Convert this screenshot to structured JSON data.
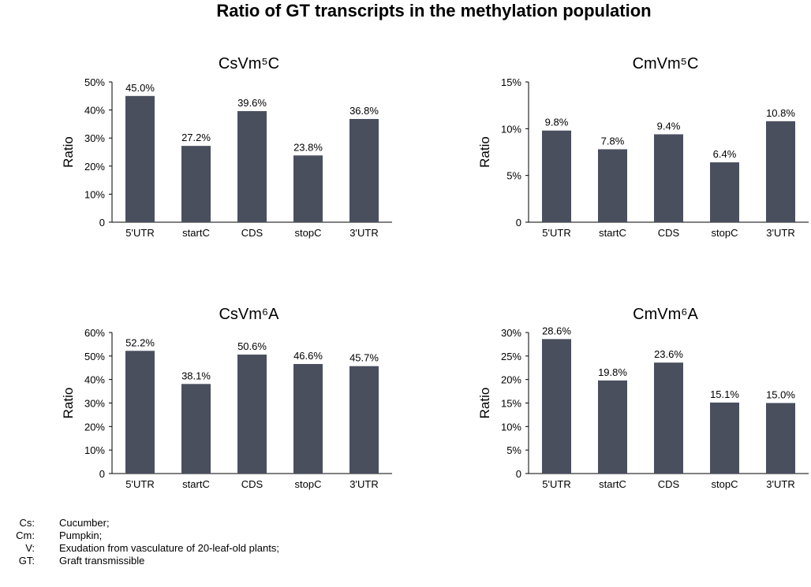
{
  "title": "Ratio of GT transcripts in the methylation population",
  "colors": {
    "bar": "#4a4f5e",
    "axis": "#000000"
  },
  "chart_data": [
    {
      "type": "bar",
      "title": "CsVm⁵C",
      "ylabel": "Ratio",
      "categories": [
        "5'UTR",
        "startC",
        "CDS",
        "stopC",
        "3'UTR"
      ],
      "values": [
        45.0,
        27.2,
        39.6,
        23.8,
        36.8
      ],
      "data_labels": [
        "45.0%",
        "27.2%",
        "39.6%",
        "23.8%",
        "36.8%"
      ],
      "ylim": [
        0,
        50
      ],
      "yticks": [
        0,
        10,
        20,
        30,
        40,
        50
      ],
      "ytick_labels": [
        "0",
        "10%",
        "20%",
        "30%",
        "40%",
        "50%"
      ],
      "grid": false,
      "legend": "none"
    },
    {
      "type": "bar",
      "title": "CmVm⁵C",
      "ylabel": "Ratio",
      "categories": [
        "5'UTR",
        "startC",
        "CDS",
        "stopC",
        "3'UTR"
      ],
      "values": [
        9.8,
        7.8,
        9.4,
        6.4,
        10.8
      ],
      "data_labels": [
        "9.8%",
        "7.8%",
        "9.4%",
        "6.4%",
        "10.8%"
      ],
      "ylim": [
        0,
        15
      ],
      "yticks": [
        0,
        5,
        10,
        15
      ],
      "ytick_labels": [
        "0",
        "5%",
        "10%",
        "15%"
      ],
      "grid": false,
      "legend": "none"
    },
    {
      "type": "bar",
      "title": "CsVm⁶A",
      "ylabel": "Ratio",
      "categories": [
        "5'UTR",
        "startC",
        "CDS",
        "stopC",
        "3'UTR"
      ],
      "values": [
        52.2,
        38.1,
        50.6,
        46.6,
        45.7
      ],
      "data_labels": [
        "52.2%",
        "38.1%",
        "50.6%",
        "46.6%",
        "45.7%"
      ],
      "ylim": [
        0,
        60
      ],
      "yticks": [
        0,
        10,
        20,
        30,
        40,
        50,
        60
      ],
      "ytick_labels": [
        "0",
        "10%",
        "20%",
        "30%",
        "40%",
        "50%",
        "60%"
      ],
      "grid": false,
      "legend": "none"
    },
    {
      "type": "bar",
      "title": "CmVm⁶A",
      "ylabel": "Ratio",
      "categories": [
        "5'UTR",
        "startC",
        "CDS",
        "stopC",
        "3'UTR"
      ],
      "values": [
        28.6,
        19.8,
        23.6,
        15.1,
        15.0
      ],
      "data_labels": [
        "28.6%",
        "19.8%",
        "23.6%",
        "15.1%",
        "15.0%"
      ],
      "ylim": [
        0,
        30
      ],
      "yticks": [
        0,
        5,
        10,
        15,
        20,
        25,
        30
      ],
      "ytick_labels": [
        "0",
        "5%",
        "10%",
        "15%",
        "20%",
        "25%",
        "30%"
      ],
      "grid": false,
      "legend": "none"
    }
  ],
  "legend": [
    {
      "abbr": "Cs:",
      "desc": "Cucumber;"
    },
    {
      "abbr": "Cm:",
      "desc": "Pumpkin;"
    },
    {
      "abbr": "V:",
      "desc": "Exudation from vasculature of 20-leaf-old plants;"
    },
    {
      "abbr": "GT:",
      "desc": "Graft transmissible"
    }
  ]
}
